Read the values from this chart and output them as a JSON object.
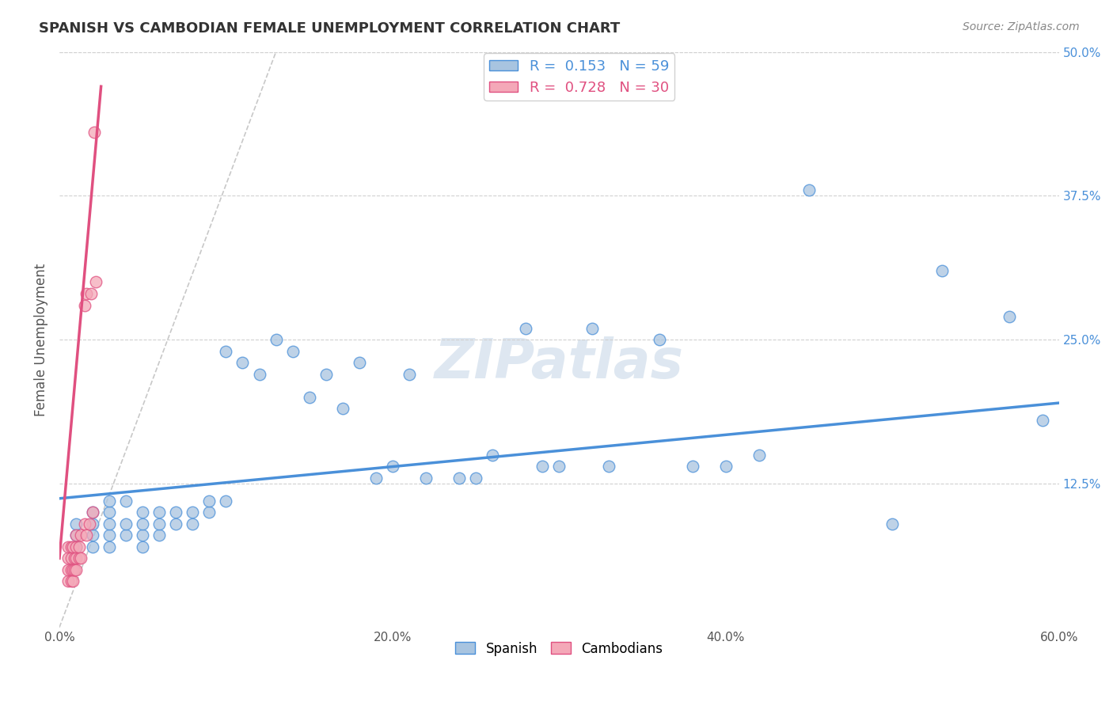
{
  "title": "SPANISH VS CAMBODIAN FEMALE UNEMPLOYMENT CORRELATION CHART",
  "source": "Source: ZipAtlas.com",
  "ylabel": "Female Unemployment",
  "xlim": [
    0.0,
    0.6
  ],
  "ylim": [
    0.0,
    0.5
  ],
  "xtick_labels": [
    "0.0%",
    "20.0%",
    "40.0%",
    "60.0%"
  ],
  "xtick_vals": [
    0.0,
    0.2,
    0.4,
    0.6
  ],
  "ytick_labels": [
    "12.5%",
    "25.0%",
    "37.5%",
    "50.0%"
  ],
  "ytick_vals": [
    0.125,
    0.25,
    0.375,
    0.5
  ],
  "spanish_color": "#a8c4e0",
  "cambodian_color": "#f4a8b8",
  "spanish_line_color": "#4a90d9",
  "cambodian_line_color": "#e05080",
  "diag_line_color": "#c8c8c8",
  "legend_R1": "R =  0.153",
  "legend_N1": "N = 59",
  "legend_R2": "R =  0.728",
  "legend_N2": "N = 30",
  "watermark": "ZIPatlas",
  "watermark_color": "#c8d8e8",
  "spanish_x": [
    0.01,
    0.01,
    0.01,
    0.02,
    0.02,
    0.02,
    0.02,
    0.03,
    0.03,
    0.03,
    0.03,
    0.03,
    0.04,
    0.04,
    0.04,
    0.05,
    0.05,
    0.05,
    0.05,
    0.06,
    0.06,
    0.06,
    0.07,
    0.07,
    0.08,
    0.08,
    0.09,
    0.09,
    0.1,
    0.1,
    0.11,
    0.12,
    0.13,
    0.14,
    0.15,
    0.16,
    0.17,
    0.18,
    0.19,
    0.2,
    0.21,
    0.22,
    0.24,
    0.25,
    0.26,
    0.28,
    0.29,
    0.3,
    0.32,
    0.33,
    0.36,
    0.38,
    0.4,
    0.42,
    0.45,
    0.5,
    0.53,
    0.57,
    0.59
  ],
  "spanish_y": [
    0.07,
    0.08,
    0.09,
    0.07,
    0.08,
    0.09,
    0.1,
    0.07,
    0.08,
    0.09,
    0.1,
    0.11,
    0.08,
    0.09,
    0.11,
    0.07,
    0.08,
    0.09,
    0.1,
    0.08,
    0.09,
    0.1,
    0.09,
    0.1,
    0.09,
    0.1,
    0.1,
    0.11,
    0.11,
    0.24,
    0.23,
    0.22,
    0.25,
    0.24,
    0.2,
    0.22,
    0.19,
    0.23,
    0.13,
    0.14,
    0.22,
    0.13,
    0.13,
    0.13,
    0.15,
    0.26,
    0.14,
    0.14,
    0.26,
    0.14,
    0.25,
    0.14,
    0.14,
    0.15,
    0.38,
    0.09,
    0.31,
    0.27,
    0.18
  ],
  "cambodian_x": [
    0.005,
    0.005,
    0.005,
    0.005,
    0.007,
    0.007,
    0.007,
    0.007,
    0.008,
    0.008,
    0.008,
    0.009,
    0.009,
    0.01,
    0.01,
    0.01,
    0.01,
    0.012,
    0.012,
    0.013,
    0.013,
    0.015,
    0.015,
    0.016,
    0.016,
    0.018,
    0.019,
    0.02,
    0.021,
    0.022
  ],
  "cambodian_y": [
    0.04,
    0.05,
    0.06,
    0.07,
    0.04,
    0.05,
    0.06,
    0.07,
    0.04,
    0.05,
    0.07,
    0.05,
    0.06,
    0.05,
    0.06,
    0.07,
    0.08,
    0.06,
    0.07,
    0.06,
    0.08,
    0.09,
    0.28,
    0.08,
    0.29,
    0.09,
    0.29,
    0.1,
    0.43,
    0.3
  ],
  "spanish_trendline": [
    0.0,
    0.6,
    0.112,
    0.195
  ],
  "cambodian_trendline": [
    0.0,
    0.025,
    0.06,
    0.47
  ],
  "diag_line": [
    0.0,
    0.13,
    0.0,
    0.5
  ],
  "background_color": "#ffffff",
  "grid_color": "#d0d0d0"
}
